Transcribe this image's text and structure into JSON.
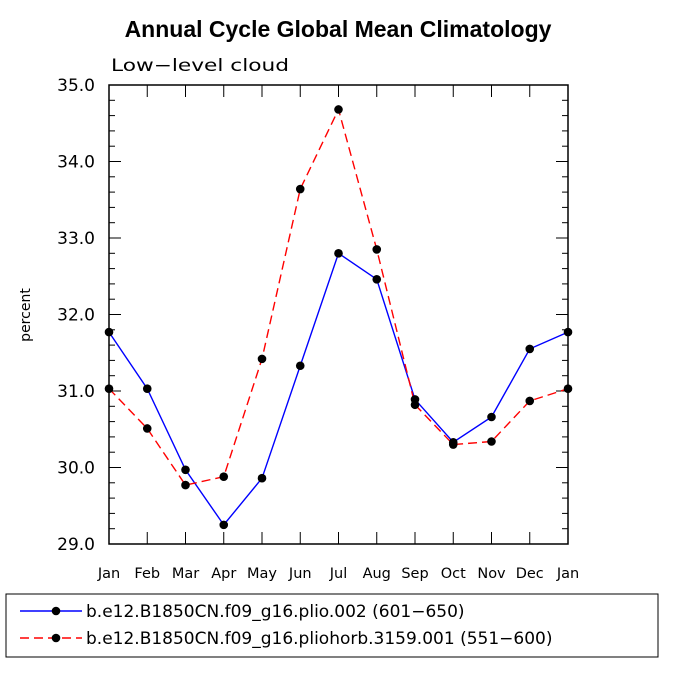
{
  "chart_data": {
    "type": "line",
    "title": "Annual Cycle Global Mean Climatology",
    "subtitle": "Low−level cloud",
    "xlabel": "",
    "ylabel": "percent",
    "categories": [
      "Jan",
      "Feb",
      "Mar",
      "Apr",
      "May",
      "Jun",
      "Jul",
      "Aug",
      "Sep",
      "Oct",
      "Nov",
      "Dec",
      "Jan"
    ],
    "ylim": [
      29.0,
      35.0
    ],
    "yticks": [
      29.0,
      30.0,
      31.0,
      32.0,
      33.0,
      34.0,
      35.0
    ],
    "ytick_labels": [
      "29.0",
      "30.0",
      "31.0",
      "32.0",
      "33.0",
      "34.0",
      "35.0"
    ],
    "grid": false,
    "legend_position": "bottom",
    "series": [
      {
        "name": "b.e12.B1850CN.f09_g16.plio.002 (601−650)",
        "color": "#0000ff",
        "dash": "solid",
        "values": [
          31.77,
          31.03,
          29.97,
          29.25,
          29.86,
          31.33,
          32.8,
          32.46,
          30.89,
          30.33,
          30.66,
          31.55,
          31.77
        ]
      },
      {
        "name": "b.e12.B1850CN.f09_g16.pliohorb.3159.001 (551−600)",
        "color": "#ff0000",
        "dash": "dashed",
        "values": [
          31.03,
          30.51,
          29.77,
          29.88,
          31.42,
          33.64,
          34.68,
          32.85,
          30.82,
          30.3,
          30.34,
          30.87,
          31.03
        ]
      }
    ]
  }
}
